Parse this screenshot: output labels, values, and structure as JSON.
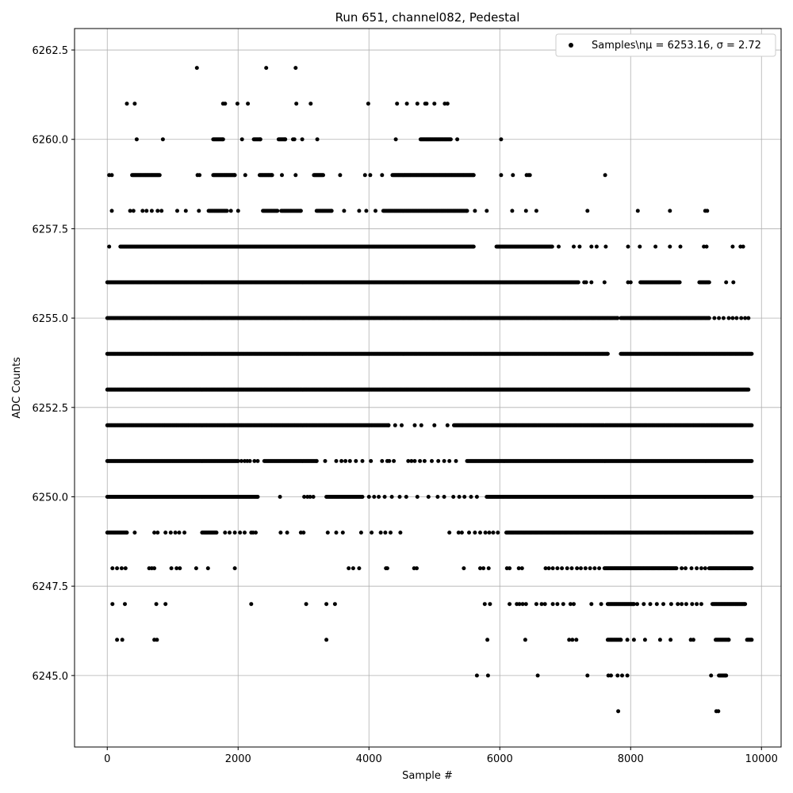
{
  "chart_data": {
    "type": "scatter",
    "title": "Run 651, channel082, Pedestal",
    "xlabel": "Sample #",
    "ylabel": "ADC Counts",
    "xlim": [
      -500,
      10300
    ],
    "ylim": [
      6243.0,
      6263.1
    ],
    "x_ticks": [
      0,
      2000,
      4000,
      6000,
      8000,
      10000
    ],
    "x_tick_labels": [
      "0",
      "2000",
      "4000",
      "6000",
      "8000",
      "10000"
    ],
    "y_ticks": [
      6245.0,
      6247.5,
      6250.0,
      6252.5,
      6255.0,
      6257.5,
      6260.0,
      6262.5
    ],
    "y_tick_labels": [
      "6245.0",
      "6247.5",
      "6250.0",
      "6252.5",
      "6255.0",
      "6257.5",
      "6260.0",
      "6262.5"
    ],
    "grid": true,
    "legend_position": "top-right",
    "series": [
      {
        "name": "Samples\\nμ = 6253.16, σ = 2.72",
        "color": "#000000",
        "marker": "circle",
        "x_range": [
          0,
          9850
        ],
        "levels": [
          {
            "y": 6262,
            "segments": [],
            "points": [
              1370,
              2430,
              2880
            ]
          },
          {
            "y": 6261,
            "segments": [],
            "points": [
              300,
              420,
              1770,
              1800,
              1990,
              2150,
              2890,
              3110,
              3990,
              4430,
              4580,
              4740,
              4860,
              4880,
              5000,
              5160,
              5200
            ]
          },
          {
            "y": 6260,
            "segments": [
              [
                1620,
                1770
              ],
              [
                2240,
                2340
              ],
              [
                2620,
                2720
              ],
              [
                4790,
                5250
              ]
            ],
            "points": [
              450,
              850,
              2060,
              2840,
              2860,
              2980,
              3210,
              4410,
              5350,
              6020
            ]
          },
          {
            "y": 6259,
            "segments": [
              [
                380,
                800
              ],
              [
                1620,
                1950
              ],
              [
                2330,
                2520
              ],
              [
                3160,
                3300
              ],
              [
                4360,
                5600
              ]
            ],
            "points": [
              30,
              70,
              1380,
              1410,
              2110,
              2670,
              2880,
              3560,
              3940,
              4020,
              4200,
              6020,
              6200,
              6410,
              6440,
              6460,
              7610
            ]
          },
          {
            "y": 6258,
            "segments": [
              [
                1550,
                1830
              ],
              [
                2380,
                2600
              ],
              [
                2660,
                2960
              ],
              [
                3200,
                3430
              ],
              [
                4220,
                5500
              ]
            ],
            "points": [
              70,
              350,
              400,
              540,
              600,
              680,
              770,
              830,
              1070,
              1200,
              1400,
              1890,
              2000,
              3620,
              3850,
              3960,
              4100,
              5620,
              5800,
              6190,
              6400,
              6560,
              7340,
              8110,
              8600,
              9140,
              9170
            ]
          },
          {
            "y": 6257,
            "segments": [
              [
                200,
                5600
              ],
              [
                5950,
                6800
              ]
            ],
            "points": [
              30,
              6900,
              7130,
              7220,
              7400,
              7480,
              7620,
              7960,
              8140,
              8380,
              8600,
              8760,
              9120,
              9160,
              9560,
              9680,
              9720
            ]
          },
          {
            "y": 6256,
            "segments": [
              [
                0,
                7200
              ],
              [
                8150,
                8750
              ],
              [
                9050,
                9200
              ]
            ],
            "points": [
              7290,
              7320,
              7400,
              7600,
              7960,
              8000,
              9460,
              9570
            ]
          },
          {
            "y": 6255,
            "segments": [
              [
                0,
                7800
              ],
              [
                7850,
                9200
              ]
            ],
            "points": [
              9280,
              9350,
              9420,
              9500,
              9560,
              9620,
              9690,
              9750,
              9800
            ]
          },
          {
            "y": 6254,
            "segments": [
              [
                0,
                7650
              ],
              [
                7850,
                9850
              ]
            ],
            "points": []
          },
          {
            "y": 6253,
            "segments": [
              [
                0,
                9800
              ]
            ],
            "points": []
          },
          {
            "y": 6252,
            "segments": [
              [
                0,
                4300
              ],
              [
                5300,
                9850
              ]
            ],
            "points": [
              4400,
              4500,
              4700,
              4800,
              5000,
              5200
            ]
          },
          {
            "y": 6251,
            "segments": [
              [
                0,
                2000
              ],
              [
                2400,
                3200
              ],
              [
                5500,
                9850
              ]
            ],
            "points": [
              2050,
              2100,
              2140,
              2180,
              2250,
              2300,
              3330,
              3500,
              3580,
              3640,
              3710,
              3800,
              3900,
              4030,
              4200,
              4280,
              4310,
              4380,
              4600,
              4650,
              4700,
              4780,
              4850,
              4960,
              5060,
              5150,
              5230,
              5330
            ]
          },
          {
            "y": 6250,
            "segments": [
              [
                0,
                2300
              ],
              [
                3350,
                3900
              ],
              [
                5800,
                9850
              ]
            ],
            "points": [
              2640,
              3010,
              3060,
              3100,
              3150,
              4000,
              4080,
              4150,
              4240,
              4350,
              4470,
              4570,
              4740,
              4910,
              5050,
              5150,
              5290,
              5380,
              5460,
              5560,
              5650
            ]
          },
          {
            "y": 6249,
            "segments": [
              [
                0,
                300
              ],
              [
                1450,
                1670
              ],
              [
                6100,
                9850
              ]
            ],
            "points": [
              420,
              720,
              770,
              890,
              970,
              1040,
              1100,
              1180,
              1800,
              1870,
              1950,
              2030,
              2100,
              2200,
              2230,
              2270,
              2650,
              2750,
              2960,
              3000,
              3370,
              3500,
              3600,
              3880,
              4040,
              4180,
              4250,
              4330,
              4480,
              5230,
              5370,
              5420,
              5530,
              5620,
              5700,
              5780,
              5840,
              5900,
              5970
            ]
          },
          {
            "y": 6248,
            "segments": [
              [
                7600,
                8700
              ],
              [
                9200,
                9850
              ]
            ],
            "points": [
              80,
              150,
              220,
              280,
              640,
              680,
              720,
              980,
              1060,
              1110,
              1360,
              1540,
              1950,
              3690,
              3760,
              3850,
              4260,
              4280,
              4690,
              4730,
              5450,
              5700,
              5750,
              5830,
              6110,
              6150,
              6290,
              6340,
              6700,
              6750,
              6810,
              6880,
              6950,
              7030,
              7100,
              7180,
              7240,
              7310,
              7380,
              7450,
              7520,
              8780,
              8840,
              8930,
              9010,
              9080,
              9140
            ]
          },
          {
            "y": 6247,
            "segments": [
              [
                7650,
                8050
              ],
              [
                9250,
                9750
              ]
            ],
            "points": [
              80,
              270,
              750,
              890,
              2200,
              3040,
              3350,
              3480,
              5770,
              5850,
              6150,
              6260,
              6300,
              6350,
              6400,
              6560,
              6640,
              6690,
              6810,
              6880,
              6970,
              7080,
              7130,
              7400,
              7550,
              8100,
              8200,
              8300,
              8400,
              8500,
              8620,
              8720,
              8780,
              8850,
              8940,
              9010,
              9080
            ]
          },
          {
            "y": 6246,
            "segments": [
              [
                7650,
                7850
              ],
              [
                9300,
                9500
              ],
              [
                9780,
                9850
              ]
            ],
            "points": [
              150,
              230,
              720,
              760,
              3350,
              5810,
              6390,
              7060,
              7110,
              7170,
              7950,
              8050,
              8220,
              8450,
              8610,
              8920,
              8960
            ]
          },
          {
            "y": 6245,
            "segments": [
              [
                9350,
                9460
              ]
            ],
            "points": [
              5650,
              5820,
              6580,
              7340,
              7660,
              7700,
              7800,
              7870,
              7950,
              9230
            ]
          },
          {
            "y": 6244,
            "segments": [],
            "points": [
              7810,
              9310,
              9340
            ]
          }
        ]
      }
    ]
  }
}
